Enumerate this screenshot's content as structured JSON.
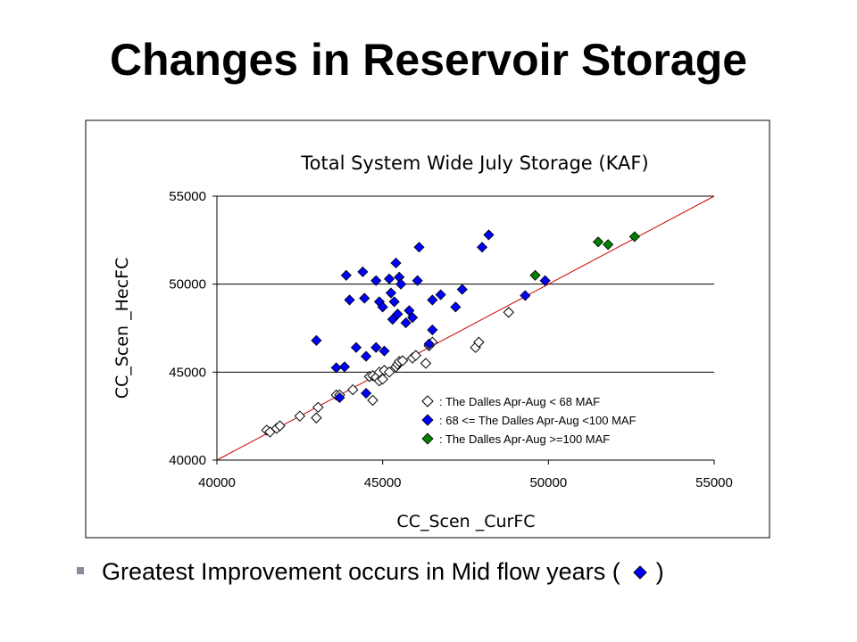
{
  "slide": {
    "title": "Changes in Reservoir Storage",
    "bullet_text": "Greatest Improvement occurs in Mid flow years (",
    "bullet_close": ")",
    "bullet_icon": "blue-diamond-icon"
  },
  "chart_data": {
    "type": "scatter",
    "title": "Total System Wide July Storage (KAF)",
    "xlabel": "CC_Scen _CurFC",
    "ylabel": "CC_Scen _HecFC",
    "xlim": [
      40000,
      55000
    ],
    "ylim": [
      40000,
      55000
    ],
    "xticks": [
      40000,
      45000,
      50000,
      55000
    ],
    "yticks": [
      40000,
      45000,
      50000,
      55000
    ],
    "grid": "horizontal",
    "reference_line": "1:1",
    "reference_color": "#cc0000",
    "legend_position": "bottom-right",
    "series": [
      {
        "name": ": The Dalles Apr-Aug  < 68 MAF",
        "marker": "hollow-diamond",
        "color": "#000000",
        "points": [
          [
            41500,
            41700
          ],
          [
            41600,
            41600
          ],
          [
            41800,
            41800
          ],
          [
            41900,
            41950
          ],
          [
            42500,
            42500
          ],
          [
            43000,
            42400
          ],
          [
            43050,
            43000
          ],
          [
            43600,
            43700
          ],
          [
            43700,
            43700
          ],
          [
            44100,
            44000
          ],
          [
            44600,
            44750
          ],
          [
            44700,
            44800
          ],
          [
            44700,
            43400
          ],
          [
            44800,
            44700
          ],
          [
            44900,
            45000
          ],
          [
            44900,
            44500
          ],
          [
            45000,
            44600
          ],
          [
            45050,
            45100
          ],
          [
            45200,
            45000
          ],
          [
            45400,
            45300
          ],
          [
            45450,
            45450
          ],
          [
            45500,
            45600
          ],
          [
            45600,
            45650
          ],
          [
            45900,
            45800
          ],
          [
            46000,
            45950
          ],
          [
            46300,
            45500
          ],
          [
            46400,
            46500
          ],
          [
            46500,
            46700
          ],
          [
            47800,
            46400
          ],
          [
            47900,
            46700
          ],
          [
            48800,
            48400
          ]
        ]
      },
      {
        "name": ": 68  <= The Dalles Apr-Aug  <100 MAF",
        "marker": "diamond",
        "color": "#0000ff",
        "points": [
          [
            43000,
            46800
          ],
          [
            43600,
            45250
          ],
          [
            43700,
            43550
          ],
          [
            43850,
            45300
          ],
          [
            43900,
            50500
          ],
          [
            44000,
            49100
          ],
          [
            44200,
            46400
          ],
          [
            44400,
            50700
          ],
          [
            44450,
            49200
          ],
          [
            44500,
            43800
          ],
          [
            44500,
            45900
          ],
          [
            44800,
            50200
          ],
          [
            44800,
            46400
          ],
          [
            44900,
            49000
          ],
          [
            45000,
            48700
          ],
          [
            45050,
            46200
          ],
          [
            45200,
            50300
          ],
          [
            45250,
            49500
          ],
          [
            45300,
            48000
          ],
          [
            45350,
            49000
          ],
          [
            45400,
            51200
          ],
          [
            45450,
            48300
          ],
          [
            45500,
            50400
          ],
          [
            45550,
            50000
          ],
          [
            45700,
            47800
          ],
          [
            45800,
            48500
          ],
          [
            45900,
            48100
          ],
          [
            46050,
            50200
          ],
          [
            46100,
            52100
          ],
          [
            46400,
            46600
          ],
          [
            46500,
            47400
          ],
          [
            46500,
            49100
          ],
          [
            46750,
            49400
          ],
          [
            47200,
            48700
          ],
          [
            47400,
            49700
          ],
          [
            48000,
            52100
          ],
          [
            48200,
            52800
          ],
          [
            49300,
            49350
          ],
          [
            49900,
            50200
          ]
        ]
      },
      {
        "name": ": The Dalles Apr-Aug  >=100 MAF",
        "marker": "diamond",
        "color": "#008000",
        "points": [
          [
            49600,
            50500
          ],
          [
            51500,
            52400
          ],
          [
            51800,
            52250
          ],
          [
            52600,
            52700
          ]
        ]
      }
    ]
  }
}
